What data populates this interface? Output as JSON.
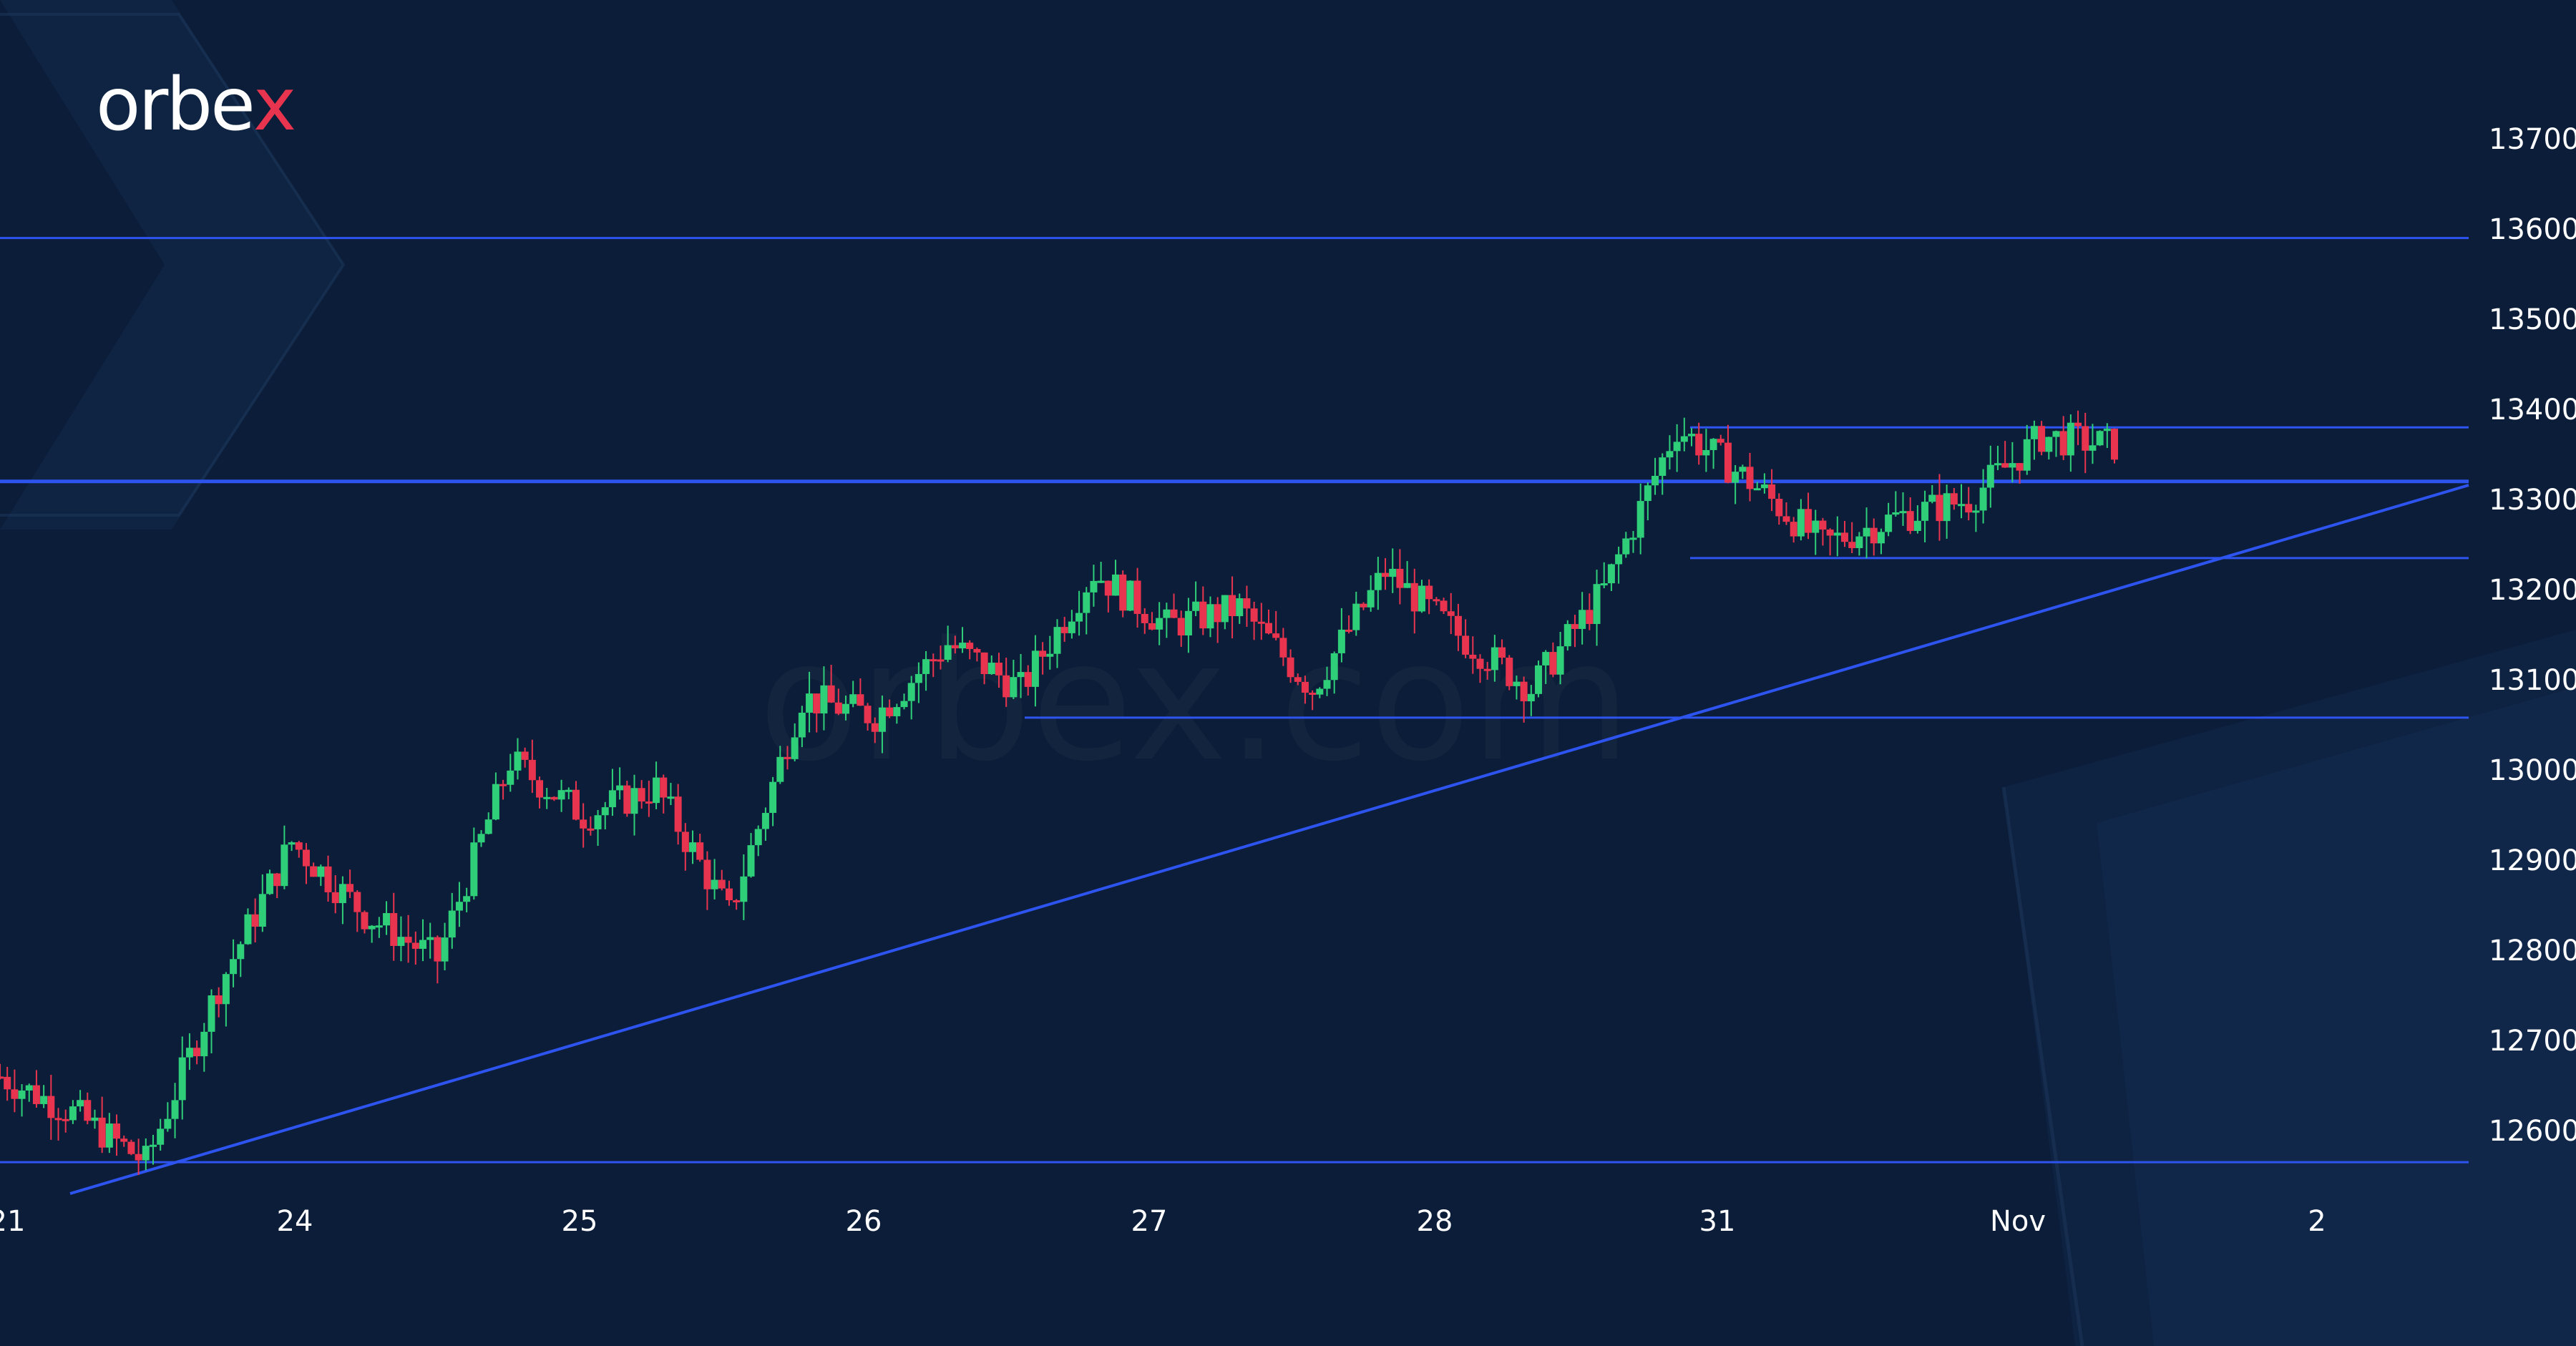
{
  "brand": {
    "logo_text": "orbe",
    "logo_x": "x",
    "watermark": "orbex.com"
  },
  "colors": {
    "background": "#0b1d38",
    "up": "#2fcf7a",
    "down": "#e8344e",
    "level_line": "#2e54f0",
    "text": "#ffffff"
  },
  "chart_data": {
    "type": "candlestick",
    "x_tick_labels": [
      "21",
      "24",
      "25",
      "26",
      "27",
      "28",
      "31",
      "Nov",
      "2"
    ],
    "y_tick_labels": [
      "13700",
      "13600",
      "13500",
      "13400",
      "13300",
      "13200",
      "13100",
      "13000",
      "12900",
      "12800",
      "12700",
      "12600"
    ],
    "ylim": [
      12520,
      13740
    ],
    "grid": false,
    "horizontal_levels": [
      {
        "price": 13590,
        "from_day": "21"
      },
      {
        "price": 13320,
        "from_day": "21"
      },
      {
        "price": 13380,
        "from_day": "31"
      },
      {
        "price": 13235,
        "from_day": "31"
      },
      {
        "price": 13058,
        "from_day": "26"
      },
      {
        "price": 12565,
        "from_day": "21"
      }
    ],
    "trendline": {
      "from": [
        "21",
        12535
      ],
      "to": [
        "2",
        13320
      ]
    },
    "candle_colors": {
      "up": "green",
      "down": "red"
    },
    "approx_price_path": [
      [
        "21",
        12660
      ],
      [
        "21",
        12620
      ],
      [
        "24",
        12565
      ],
      [
        "24",
        12760
      ],
      [
        "24",
        12920
      ],
      [
        "24",
        12840
      ],
      [
        "25",
        12790
      ],
      [
        "25",
        13010
      ],
      [
        "25",
        12950
      ],
      [
        "25",
        12980
      ],
      [
        "25",
        12840
      ],
      [
        "26",
        13080
      ],
      [
        "26",
        13060
      ],
      [
        "26",
        13140
      ],
      [
        "26",
        13090
      ],
      [
        "27",
        13220
      ],
      [
        "27",
        13160
      ],
      [
        "27",
        13180
      ],
      [
        "27",
        13090
      ],
      [
        "28",
        13220
      ],
      [
        "28",
        13150
      ],
      [
        "28",
        13090
      ],
      [
        "28",
        13200
      ],
      [
        "31",
        13380
      ],
      [
        "31",
        13320
      ],
      [
        "31",
        13250
      ],
      [
        "31",
        13280
      ],
      [
        "Nov",
        13300
      ],
      [
        "Nov",
        13370
      ],
      [
        "Nov",
        13360
      ]
    ]
  }
}
